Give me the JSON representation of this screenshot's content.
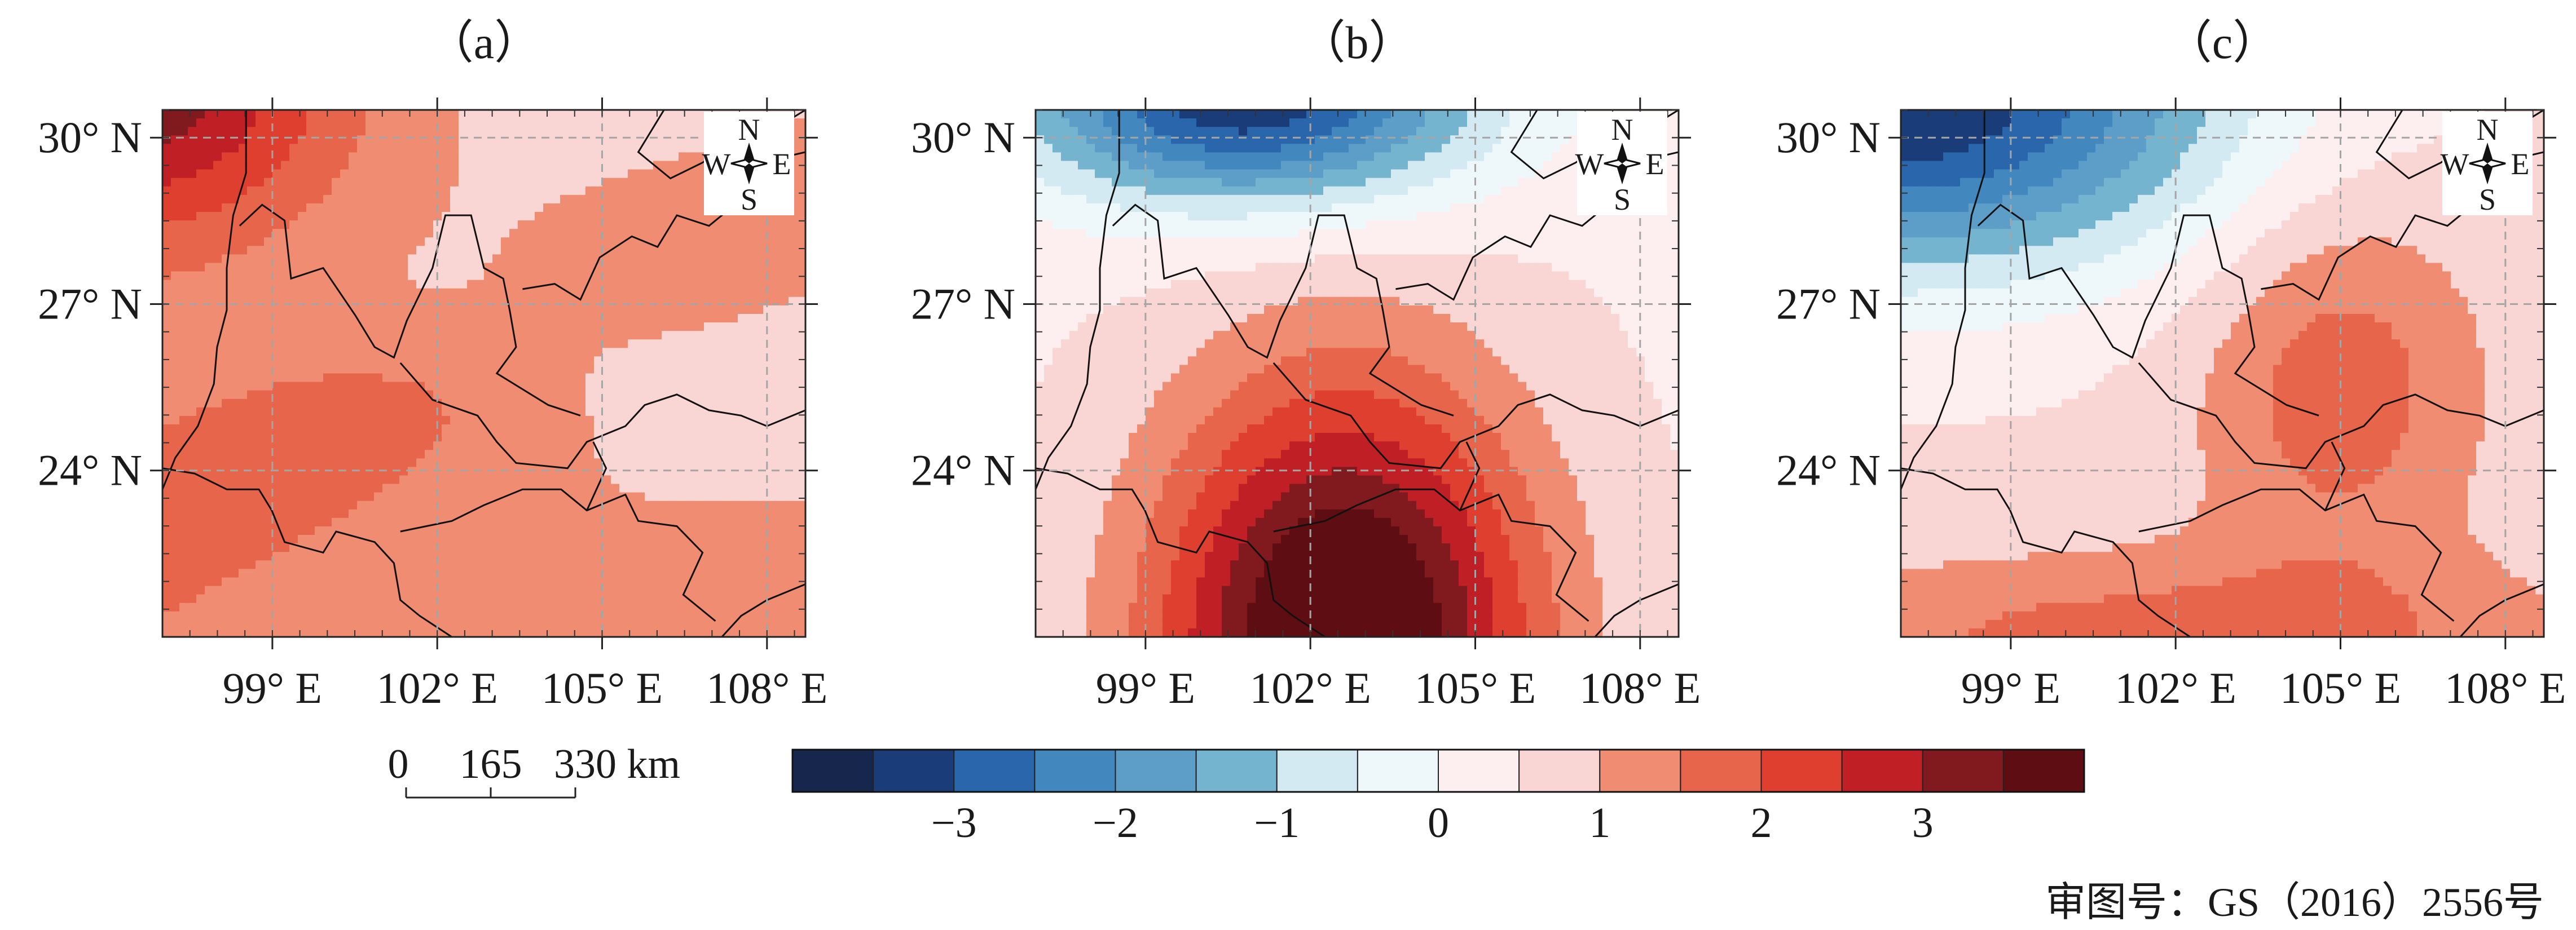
{
  "chart_data": {
    "type": "contour_map",
    "panels": [
      {
        "label": "（a）",
        "pattern": "a"
      },
      {
        "label": "（b）",
        "pattern": "b"
      },
      {
        "label": "（c）",
        "pattern": "c"
      }
    ],
    "lon_range": [
      97,
      108.7
    ],
    "lat_range": [
      21,
      30.5
    ],
    "lon_ticks": [
      99,
      102,
      105,
      108
    ],
    "lat_ticks": [
      30,
      27,
      24
    ],
    "lon_tick_labels": [
      "99° E",
      "102° E",
      "105° E",
      "108° E"
    ],
    "lat_tick_labels": [
      "30° N",
      "27° N",
      "24° N"
    ],
    "compass": {
      "n": "N",
      "s": "S",
      "w": "W",
      "e": "E"
    },
    "scale_bar": {
      "labels": [
        "0",
        "165",
        "330 km"
      ]
    },
    "colorbar": {
      "levels": [
        -4,
        -3.5,
        -3,
        -2.5,
        -2,
        -1.5,
        -1,
        -0.5,
        0,
        0.5,
        1,
        1.5,
        2,
        2.5,
        3,
        3.5,
        4
      ],
      "colors": [
        "#16264d",
        "#1a3d7a",
        "#2a66ab",
        "#4288bf",
        "#5d9ec9",
        "#75b4cf",
        "#d3eaf2",
        "#eef7fa",
        "#fdeff0",
        "#f9d6d4",
        "#ef8c72",
        "#e7654a",
        "#df3f2f",
        "#c01f26",
        "#801a1f",
        "#5e0e12"
      ],
      "tick_values": [
        -3,
        -2,
        -1,
        0,
        1,
        2,
        3
      ],
      "tick_labels": [
        "−3",
        "−2",
        "−1",
        "0",
        "1",
        "2",
        "3"
      ]
    },
    "approval": "审图号：GS（2016）2556号"
  }
}
